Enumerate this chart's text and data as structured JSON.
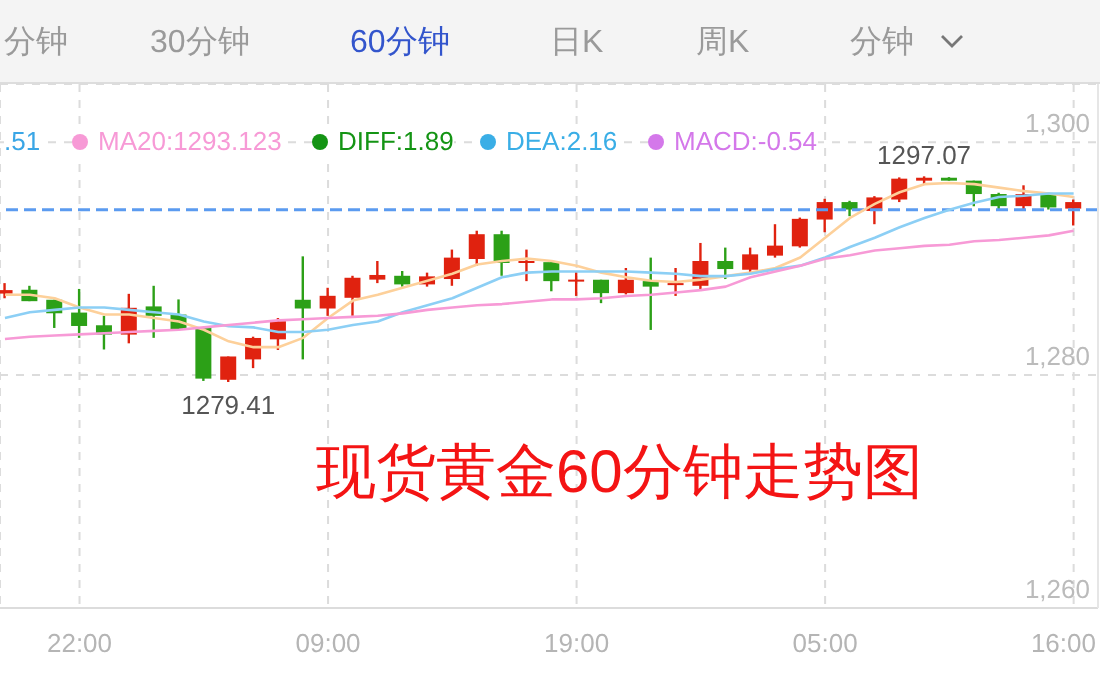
{
  "chart_data": {
    "type": "candlestick",
    "title": "现货黄金60分钟走势图",
    "categories": [
      null,
      null,
      null,
      "22:00",
      null,
      null,
      null,
      null,
      null,
      null,
      null,
      null,
      null,
      "09:00",
      null,
      null,
      null,
      null,
      null,
      null,
      null,
      null,
      null,
      "19:00",
      null,
      null,
      null,
      null,
      null,
      null,
      null,
      null,
      null,
      "05:00",
      null,
      null,
      null,
      null,
      null,
      null,
      null,
      null,
      null,
      "16:00"
    ],
    "ohlc": [
      [
        1287.0,
        1287.9,
        1286.6,
        1287.3
      ],
      [
        1287.33,
        1287.67,
        1286.35,
        1286.35
      ],
      [
        1286.47,
        1286.47,
        1284.05,
        1285.31
      ],
      [
        1285.37,
        1287.4,
        1283.2,
        1284.22
      ],
      [
        1284.28,
        1285.09,
        1282.2,
        1283.48
      ],
      [
        1283.48,
        1286.98,
        1282.73,
        1285.78
      ],
      [
        1285.9,
        1287.67,
        1283.2,
        1285.09
      ],
      [
        1285.2,
        1286.5,
        1283.88,
        1283.88
      ],
      [
        1284.05,
        1284.05,
        1279.5,
        1279.7
      ],
      [
        1279.6,
        1281.6,
        1279.41,
        1281.6
      ],
      [
        1281.35,
        1283.3,
        1280.6,
        1283.19
      ],
      [
        1283.07,
        1284.9,
        1282.16,
        1284.63
      ],
      [
        1286.47,
        1290.2,
        1281.35,
        1285.72
      ],
      [
        1285.72,
        1287.5,
        1285.09,
        1286.81
      ],
      [
        1286.64,
        1288.53,
        1285.09,
        1288.36
      ],
      [
        1288.2,
        1289.8,
        1287.9,
        1288.6
      ],
      [
        1288.53,
        1288.94,
        1287.6,
        1287.79
      ],
      [
        1287.79,
        1288.8,
        1287.6,
        1288.48
      ],
      [
        1288.25,
        1290.78,
        1287.67,
        1290.09
      ],
      [
        1289.97,
        1292.4,
        1289.4,
        1292.1
      ],
      [
        1292.1,
        1292.4,
        1288.53,
        1289.63
      ],
      [
        1289.63,
        1290.78,
        1288.07,
        1289.8
      ],
      [
        1289.7,
        1289.7,
        1287.2,
        1288.07
      ],
      [
        1288.07,
        1288.94,
        1286.8,
        1288.2
      ],
      [
        1288.19,
        1288.19,
        1286.18,
        1287.04
      ],
      [
        1287.04,
        1289.2,
        1286.93,
        1288.19
      ],
      [
        1288.07,
        1290.09,
        1283.88,
        1287.6
      ],
      [
        1287.79,
        1289.2,
        1286.8,
        1287.9
      ],
      [
        1287.67,
        1291.35,
        1287.4,
        1289.8
      ],
      [
        1289.8,
        1290.95,
        1288.25,
        1289.11
      ],
      [
        1289.05,
        1290.95,
        1288.82,
        1290.37
      ],
      [
        1290.26,
        1292.96,
        1290.09,
        1291.12
      ],
      [
        1291.06,
        1293.53,
        1290.95,
        1293.42
      ],
      [
        1293.36,
        1295.14,
        1292.27,
        1294.86
      ],
      [
        1294.86,
        1294.97,
        1293.65,
        1294.22
      ],
      [
        1294.1,
        1295.37,
        1292.96,
        1295.26
      ],
      [
        1295.08,
        1296.98,
        1294.86,
        1296.87
      ],
      [
        1296.7,
        1297.07,
        1296.4,
        1296.95
      ],
      [
        1296.95,
        1297.0,
        1296.7,
        1296.7
      ],
      [
        1296.7,
        1296.7,
        1294.5,
        1295.55
      ],
      [
        1295.55,
        1295.66,
        1294.22,
        1294.51
      ],
      [
        1294.51,
        1296.3,
        1294.1,
        1295.55
      ],
      [
        1295.55,
        1295.66,
        1294.22,
        1294.4
      ],
      [
        1294.3,
        1295.08,
        1292.85,
        1294.86
      ]
    ],
    "colors": [
      "#e0220f",
      "#2ca017",
      "#2ca017",
      "#2ca017",
      "#2ca017",
      "#e0220f",
      "#2ca017",
      "#2ca017",
      "#2ca017",
      "#e0220f",
      "#e0220f",
      "#e0220f",
      "#2ca017",
      "#e0220f",
      "#e0220f",
      "#e0220f",
      "#2ca017",
      "#e0220f",
      "#e0220f",
      "#e0220f",
      "#2ca017",
      "#e0220f",
      "#2ca017",
      "#e0220f",
      "#2ca017",
      "#e0220f",
      "#2ca017",
      "#e0220f",
      "#e0220f",
      "#2ca017",
      "#e0220f",
      "#e0220f",
      "#e0220f",
      "#e0220f",
      "#2ca017",
      "#e0220f",
      "#e0220f",
      "#e0220f",
      "#2ca017",
      "#2ca017",
      "#2ca017",
      "#e0220f",
      "#2ca017",
      "#e0220f"
    ],
    "series": [
      {
        "type": "line",
        "color": "#fdd09a",
        "values": [
          1286.9,
          1286.9,
          1286.6,
          1285.8,
          1285.2,
          1285.2,
          1284.9,
          1284.6,
          1283.9,
          1282.9,
          1282.4,
          1282.4,
          1283.2,
          1284.9,
          1286.4,
          1286.9,
          1287.5,
          1288.1,
          1288.7,
          1289.5,
          1289.8,
          1290.0,
          1289.8,
          1289.4,
          1288.8,
          1288.4,
          1288.1,
          1288.0,
          1288.2,
          1288.5,
          1288.8,
          1289.2,
          1290.1,
          1291.8,
          1293.5,
          1294.7,
          1295.7,
          1296.4,
          1296.5,
          1296.4,
          1296.1,
          1295.8,
          1295.6,
          1295.3
        ]
      },
      {
        "type": "line",
        "color": "#8ccff5",
        "values": [
          1284.9,
          1285.4,
          1285.6,
          1285.8,
          1285.8,
          1285.6,
          1285.4,
          1285.2,
          1284.6,
          1284.2,
          1284.1,
          1283.7,
          1283.7,
          1283.9,
          1284.3,
          1284.6,
          1285.4,
          1286.0,
          1286.6,
          1287.5,
          1288.4,
          1288.8,
          1288.9,
          1288.9,
          1288.9,
          1288.9,
          1288.8,
          1288.7,
          1288.5,
          1288.5,
          1288.7,
          1289.1,
          1289.4,
          1290.1,
          1291.0,
          1291.8,
          1292.7,
          1293.5,
          1294.2,
          1294.8,
          1295.3,
          1295.4,
          1295.6,
          1295.6
        ]
      },
      {
        "type": "line",
        "name": "MA20:1293.123",
        "color": "#f79ad6",
        "values": [
          1283.1,
          1283.3,
          1283.4,
          1283.5,
          1283.6,
          1283.7,
          1283.8,
          1283.9,
          1284.1,
          1284.3,
          1284.5,
          1284.7,
          1284.8,
          1284.9,
          1285.0,
          1285.1,
          1285.3,
          1285.6,
          1285.8,
          1286.0,
          1286.1,
          1286.3,
          1286.5,
          1286.5,
          1286.6,
          1286.8,
          1286.9,
          1287.1,
          1287.3,
          1287.6,
          1288.4,
          1288.9,
          1289.4,
          1290.0,
          1290.3,
          1290.7,
          1290.9,
          1291.1,
          1291.2,
          1291.5,
          1291.6,
          1291.8,
          1292.0,
          1292.4
        ]
      }
    ],
    "ylim": [
      1260,
      1305
    ],
    "yticks": [
      {
        "value": 1260,
        "label": "1,260"
      },
      {
        "value": 1280,
        "label": "1,280"
      },
      {
        "value": 1300,
        "label": "1,300"
      }
    ],
    "ref_lines": [
      {
        "axis": "y",
        "value": 1294.2,
        "color": "#5b9bf0",
        "line_style": "dashed"
      }
    ],
    "grid": true,
    "legend": "top left",
    "annotations": [
      "分钟",
      "30分钟",
      "60分钟",
      "日K",
      "周K",
      "分钟",
      ".51",
      "DIFF:1.89",
      "DEA:2.16",
      "MACD:-0.54",
      {
        "text": "1297.07",
        "y": 1297.07
      },
      {
        "text": "1279.41",
        "y": 1279.41
      }
    ]
  }
}
